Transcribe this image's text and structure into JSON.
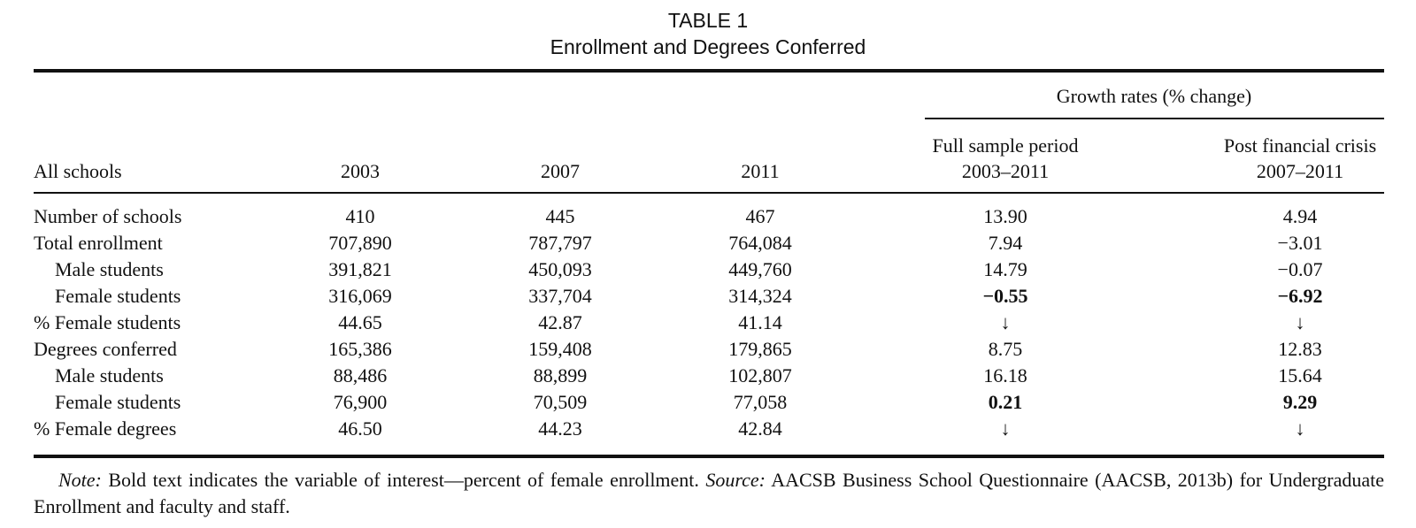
{
  "table": {
    "label": "TABLE 1",
    "title": "Enrollment and Degrees Conferred",
    "growth_header": "Growth rates (% change)",
    "stub_header": "All schools",
    "year_columns": [
      "2003",
      "2007",
      "2011"
    ],
    "growth_columns": [
      {
        "line1": "Full sample period",
        "line2": "2003–2011"
      },
      {
        "line1": "Post financial crisis",
        "line2": "2007–2011"
      }
    ],
    "rows": [
      {
        "label": "Number of schools",
        "indent": false,
        "v2003": "410",
        "v2007": "445",
        "v2011": "467",
        "full": "13.90",
        "post": "4.94",
        "bold": false
      },
      {
        "label": "Total enrollment",
        "indent": false,
        "v2003": "707,890",
        "v2007": "787,797",
        "v2011": "764,084",
        "full": "7.94",
        "post": "−3.01",
        "bold": false
      },
      {
        "label": "Male students",
        "indent": true,
        "v2003": "391,821",
        "v2007": "450,093",
        "v2011": "449,760",
        "full": "14.79",
        "post": "−0.07",
        "bold": false
      },
      {
        "label": "Female students",
        "indent": true,
        "v2003": "316,069",
        "v2007": "337,704",
        "v2011": "314,324",
        "full": "−0.55",
        "post": "−6.92",
        "bold": true
      },
      {
        "label": "% Female students",
        "indent": false,
        "v2003": "44.65",
        "v2007": "42.87",
        "v2011": "41.14",
        "full": "↓",
        "post": "↓",
        "bold": false
      },
      {
        "label": "Degrees conferred",
        "indent": false,
        "v2003": "165,386",
        "v2007": "159,408",
        "v2011": "179,865",
        "full": "8.75",
        "post": "12.83",
        "bold": false
      },
      {
        "label": "Male students",
        "indent": true,
        "v2003": "88,486",
        "v2007": "88,899",
        "v2011": "102,807",
        "full": "16.18",
        "post": "15.64",
        "bold": false
      },
      {
        "label": "Female students",
        "indent": true,
        "v2003": "76,900",
        "v2007": "70,509",
        "v2011": "77,058",
        "full": "0.21",
        "post": "9.29",
        "bold": true
      },
      {
        "label": "% Female degrees",
        "indent": false,
        "v2003": "46.50",
        "v2007": "44.23",
        "v2011": "42.84",
        "full": "↓",
        "post": "↓",
        "bold": false
      }
    ]
  },
  "note": {
    "note_label": "Note:",
    "note_text": " Bold text indicates the variable of interest—percent of female enrollment. ",
    "source_label": "Source:",
    "source_text": " AACSB Business School Questionnaire (AACSB, 2013b) for Undergraduate Enrollment and faculty and staff."
  }
}
